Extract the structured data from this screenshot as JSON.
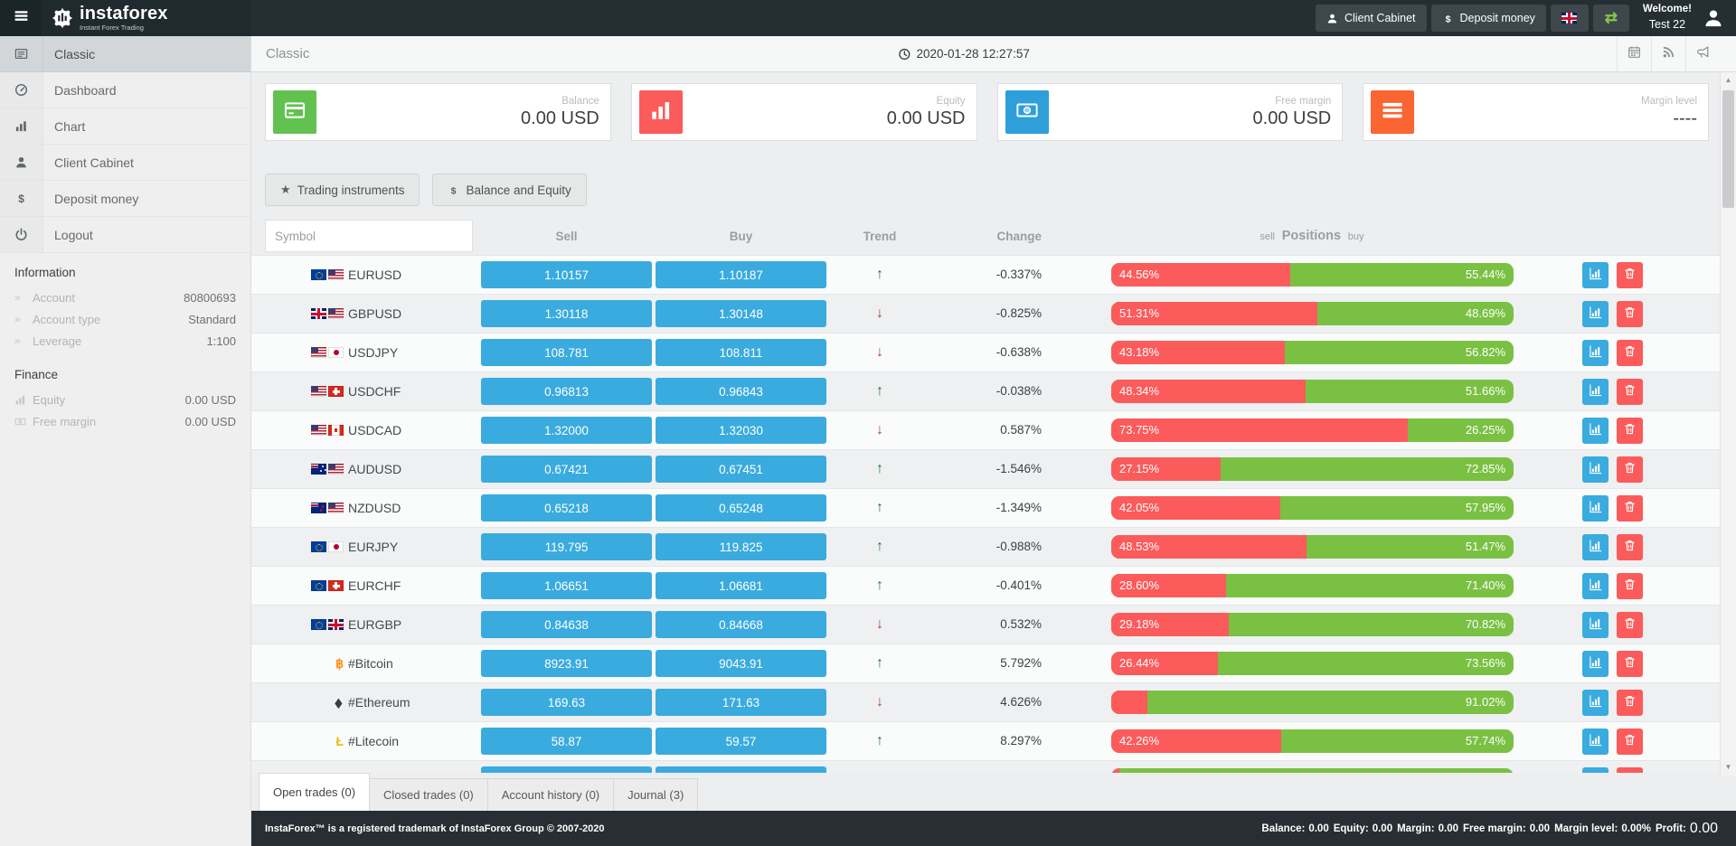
{
  "theme": {
    "accent_blue": "#3aabde",
    "bar_red": "#fb5b5b",
    "bar_green": "#7ac143",
    "header_bg": "#242e33",
    "footer_bg": "#282e33"
  },
  "header": {
    "brand": "instaforex",
    "tagline": "Instant Forex Trading",
    "client_cabinet": "Client Cabinet",
    "deposit_money": "Deposit money",
    "welcome_line1": "Welcome!",
    "welcome_line2": "Test 22"
  },
  "topbar": {
    "title": "Classic",
    "datetime": "2020-01-28 12:27:57"
  },
  "sidebar": {
    "menu": [
      {
        "label": "Classic",
        "icon": "list-icon",
        "active": true
      },
      {
        "label": "Dashboard",
        "icon": "dashboard-icon",
        "active": false
      },
      {
        "label": "Chart",
        "icon": "chart-icon",
        "active": false
      },
      {
        "label": "Client Cabinet",
        "icon": "person-icon",
        "active": false
      },
      {
        "label": "Deposit money",
        "icon": "dollar-icon",
        "active": false
      },
      {
        "label": "Logout",
        "icon": "power-icon",
        "active": false
      }
    ],
    "info_title": "Information",
    "info_rows": [
      {
        "label": "Account",
        "value": "80800693"
      },
      {
        "label": "Account type",
        "value": "Standard"
      },
      {
        "label": "Leverage",
        "value": "1:100"
      }
    ],
    "finance_title": "Finance",
    "finance_rows": [
      {
        "label": "Equity",
        "value": "0.00 USD",
        "icon": "chart-icon"
      },
      {
        "label": "Free margin",
        "value": "0.00 USD",
        "icon": "banknote-icon"
      }
    ]
  },
  "cards": [
    {
      "label": "Balance",
      "value": "0.00 USD",
      "color": "#61c250",
      "icon": "card-icon"
    },
    {
      "label": "Equity",
      "value": "0.00 USD",
      "color": "#fb5b5b",
      "icon": "chart-icon"
    },
    {
      "label": "Free margin",
      "value": "0.00 USD",
      "color": "#2e9fd9",
      "icon": "banknote-icon"
    },
    {
      "label": "Margin level",
      "value": "----",
      "color": "#fa6532",
      "icon": "menu-icon"
    }
  ],
  "filters": [
    {
      "label": "Trading instruments",
      "icon": "star-icon"
    },
    {
      "label": "Balance and Equity",
      "icon": "dollar-icon"
    }
  ],
  "table": {
    "symbol_placeholder": "Symbol",
    "header_sell": "Sell",
    "header_buy": "Buy",
    "header_trend": "Trend",
    "header_change": "Change",
    "positions_sell": "sell",
    "positions_title": "Positions",
    "positions_buy": "buy",
    "rows": [
      {
        "symbol": "EURUSD",
        "icons": [
          "eu",
          "us"
        ],
        "sell": "1.10157",
        "buy": "1.10187",
        "trend": "up",
        "change": "-0.337%",
        "sell_pct": 44.56,
        "buy_pct": 55.44,
        "sell_label": "44.56%",
        "buy_label": "55.44%",
        "partial": false
      },
      {
        "symbol": "GBPUSD",
        "icons": [
          "gb",
          "us"
        ],
        "sell": "1.30118",
        "buy": "1.30148",
        "trend": "down",
        "change": "-0.825%",
        "sell_pct": 51.31,
        "buy_pct": 48.69,
        "sell_label": "51.31%",
        "buy_label": "48.69%",
        "partial": false
      },
      {
        "symbol": "USDJPY",
        "icons": [
          "us",
          "jp"
        ],
        "sell": "108.781",
        "buy": "108.811",
        "trend": "down",
        "change": "-0.638%",
        "sell_pct": 43.18,
        "buy_pct": 56.82,
        "sell_label": "43.18%",
        "buy_label": "56.82%",
        "partial": false
      },
      {
        "symbol": "USDCHF",
        "icons": [
          "us",
          "ch"
        ],
        "sell": "0.96813",
        "buy": "0.96843",
        "trend": "up",
        "change": "-0.038%",
        "sell_pct": 48.34,
        "buy_pct": 51.66,
        "sell_label": "48.34%",
        "buy_label": "51.66%",
        "partial": false
      },
      {
        "symbol": "USDCAD",
        "icons": [
          "us",
          "ca"
        ],
        "sell": "1.32000",
        "buy": "1.32030",
        "trend": "down",
        "change": "0.587%",
        "sell_pct": 73.75,
        "buy_pct": 26.25,
        "sell_label": "73.75%",
        "buy_label": "26.25%",
        "partial": false
      },
      {
        "symbol": "AUDUSD",
        "icons": [
          "au",
          "us"
        ],
        "sell": "0.67421",
        "buy": "0.67451",
        "trend": "up",
        "change": "-1.546%",
        "sell_pct": 27.15,
        "buy_pct": 72.85,
        "sell_label": "27.15%",
        "buy_label": "72.85%",
        "partial": false
      },
      {
        "symbol": "NZDUSD",
        "icons": [
          "nz",
          "us"
        ],
        "sell": "0.65218",
        "buy": "0.65248",
        "trend": "up",
        "change": "-1.349%",
        "sell_pct": 42.05,
        "buy_pct": 57.95,
        "sell_label": "42.05%",
        "buy_label": "57.95%",
        "partial": false
      },
      {
        "symbol": "EURJPY",
        "icons": [
          "eu",
          "jp"
        ],
        "sell": "119.795",
        "buy": "119.825",
        "trend": "up",
        "change": "-0.988%",
        "sell_pct": 48.53,
        "buy_pct": 51.47,
        "sell_label": "48.53%",
        "buy_label": "51.47%",
        "partial": false
      },
      {
        "symbol": "EURCHF",
        "icons": [
          "eu",
          "ch"
        ],
        "sell": "1.06651",
        "buy": "1.06681",
        "trend": "up",
        "change": "-0.401%",
        "sell_pct": 28.6,
        "buy_pct": 71.4,
        "sell_label": "28.60%",
        "buy_label": "71.40%",
        "partial": false
      },
      {
        "symbol": "EURGBP",
        "icons": [
          "eu",
          "gb"
        ],
        "sell": "0.84638",
        "buy": "0.84668",
        "trend": "down",
        "change": "0.532%",
        "sell_pct": 29.18,
        "buy_pct": 70.82,
        "sell_label": "29.18%",
        "buy_label": "70.82%",
        "partial": false
      },
      {
        "symbol": "#Bitcoin",
        "icons": [
          "btc"
        ],
        "sell": "8923.91",
        "buy": "9043.91",
        "trend": "up",
        "change": "5.792%",
        "sell_pct": 26.44,
        "buy_pct": 73.56,
        "sell_label": "26.44%",
        "buy_label": "73.56%",
        "partial": false
      },
      {
        "symbol": "#Ethereum",
        "icons": [
          "eth"
        ],
        "sell": "169.63",
        "buy": "171.63",
        "trend": "down",
        "change": "4.626%",
        "sell_pct": 8.98,
        "buy_pct": 91.02,
        "sell_label": "",
        "buy_label": "91.02%",
        "partial": false
      },
      {
        "symbol": "#Litecoin",
        "icons": [
          "ltc"
        ],
        "sell": "58.87",
        "buy": "59.57",
        "trend": "up",
        "change": "8.297%",
        "sell_pct": 42.26,
        "buy_pct": 57.74,
        "sell_label": "42.26%",
        "buy_label": "57.74%",
        "partial": false
      },
      {
        "symbol": "",
        "icons": [
          "xrp"
        ],
        "sell": "",
        "buy": "",
        "trend": "down",
        "change": "",
        "sell_pct": 1.5,
        "buy_pct": 98.5,
        "sell_label": "",
        "buy_label": "",
        "partial": true
      }
    ]
  },
  "tabs": [
    {
      "label": "Open trades (0)",
      "active": true
    },
    {
      "label": "Closed trades (0)",
      "active": false
    },
    {
      "label": "Account history (0)",
      "active": false
    },
    {
      "label": "Journal (3)",
      "active": false
    }
  ],
  "footer": {
    "trademark": "InstaForex™ is a registered trademark of InstaForex Group © 2007-2020",
    "stats": [
      {
        "label": "Balance:",
        "value": "0.00",
        "big": false
      },
      {
        "label": "Equity:",
        "value": "0.00",
        "big": false
      },
      {
        "label": "Margin:",
        "value": "0.00",
        "big": false
      },
      {
        "label": "Free margin:",
        "value": "0.00",
        "big": false
      },
      {
        "label": "Margin level:",
        "value": "0.00%",
        "big": false
      },
      {
        "label": "Profit:",
        "value": "0.00",
        "big": true
      }
    ]
  }
}
